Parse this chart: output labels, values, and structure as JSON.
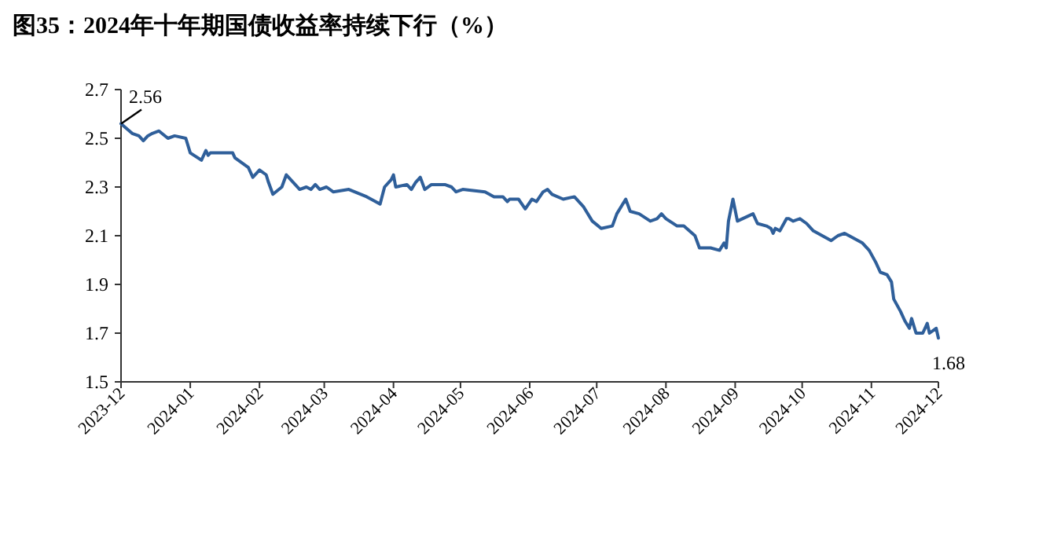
{
  "chart_data": {
    "type": "line",
    "title": "图35：2024年十年期国债收益率持续下行（%）",
    "xlim": [
      "2023-12-01",
      "2024-12-01"
    ],
    "xticks": [
      "2023-12",
      "2024-01",
      "2024-02",
      "2024-03",
      "2024-04",
      "2024-05",
      "2024-06",
      "2024-07",
      "2024-08",
      "2024-09",
      "2024-10",
      "2024-11",
      "2024-12"
    ],
    "ylim": [
      1.5,
      2.7
    ],
    "yticks": [
      1.5,
      1.7,
      1.9,
      2.1,
      2.3,
      2.5,
      2.7
    ],
    "annotations": [
      {
        "text": "2.56",
        "x": "2023-12-01",
        "y": 2.56
      },
      {
        "text": "1.68",
        "x": "2024-12-01",
        "y": 1.68
      }
    ],
    "series": [
      {
        "color": "#2f5f9a",
        "x": [
          "2023-12-01",
          "2023-12-06",
          "2023-12-09",
          "2023-12-11",
          "2023-12-13",
          "2023-12-15",
          "2023-12-18",
          "2023-12-22",
          "2023-12-25",
          "2023-12-30",
          "2024-01-01",
          "2024-01-06",
          "2024-01-08",
          "2024-01-09",
          "2024-01-10",
          "2024-01-20",
          "2024-01-21",
          "2024-01-27",
          "2024-01-29",
          "2024-02-01",
          "2024-02-04",
          "2024-02-05",
          "2024-02-07",
          "2024-02-11",
          "2024-02-13",
          "2024-02-14",
          "2024-02-19",
          "2024-02-22",
          "2024-02-24",
          "2024-02-26",
          "2024-02-28",
          "2024-03-02",
          "2024-03-05",
          "2024-03-12",
          "2024-03-20",
          "2024-03-26",
          "2024-03-28",
          "2024-03-31",
          "2024-04-01",
          "2024-04-02",
          "2024-04-07",
          "2024-04-09",
          "2024-04-11",
          "2024-04-13",
          "2024-04-15",
          "2024-04-18",
          "2024-04-24",
          "2024-04-27",
          "2024-04-29",
          "2024-05-02",
          "2024-05-12",
          "2024-05-16",
          "2024-05-20",
          "2024-05-22",
          "2024-05-23",
          "2024-05-27",
          "2024-05-30",
          "2024-06-02",
          "2024-06-04",
          "2024-06-07",
          "2024-06-09",
          "2024-06-11",
          "2024-06-16",
          "2024-06-21",
          "2024-06-25",
          "2024-06-29",
          "2024-07-03",
          "2024-07-08",
          "2024-07-10",
          "2024-07-14",
          "2024-07-16",
          "2024-07-20",
          "2024-07-25",
          "2024-07-28",
          "2024-07-30",
          "2024-08-01",
          "2024-08-06",
          "2024-08-09",
          "2024-08-14",
          "2024-08-16",
          "2024-08-21",
          "2024-08-25",
          "2024-08-27",
          "2024-08-28",
          "2024-08-29",
          "2024-08-31",
          "2024-09-02",
          "2024-09-09",
          "2024-09-11",
          "2024-09-15",
          "2024-09-17",
          "2024-09-18",
          "2024-09-19",
          "2024-09-21",
          "2024-09-24",
          "2024-09-25",
          "2024-09-27",
          "2024-09-30",
          "2024-10-03",
          "2024-10-06",
          "2024-10-10",
          "2024-10-14",
          "2024-10-17",
          "2024-10-20",
          "2024-10-22",
          "2024-10-28",
          "2024-10-31",
          "2024-11-03",
          "2024-11-05",
          "2024-11-08",
          "2024-11-10",
          "2024-11-11",
          "2024-11-14",
          "2024-11-16",
          "2024-11-18",
          "2024-11-19",
          "2024-11-21",
          "2024-11-24",
          "2024-11-26",
          "2024-11-27",
          "2024-11-30",
          "2024-12-01"
        ],
        "values": [
          2.56,
          2.52,
          2.51,
          2.49,
          2.51,
          2.52,
          2.53,
          2.5,
          2.51,
          2.5,
          2.44,
          2.41,
          2.45,
          2.43,
          2.44,
          2.44,
          2.42,
          2.38,
          2.34,
          2.37,
          2.35,
          2.32,
          2.27,
          2.3,
          2.35,
          2.34,
          2.29,
          2.3,
          2.29,
          2.31,
          2.29,
          2.3,
          2.28,
          2.29,
          2.26,
          2.23,
          2.3,
          2.33,
          2.35,
          2.3,
          2.31,
          2.29,
          2.32,
          2.34,
          2.29,
          2.31,
          2.31,
          2.3,
          2.28,
          2.29,
          2.28,
          2.26,
          2.26,
          2.24,
          2.25,
          2.25,
          2.21,
          2.25,
          2.24,
          2.28,
          2.29,
          2.27,
          2.25,
          2.26,
          2.22,
          2.16,
          2.13,
          2.14,
          2.19,
          2.25,
          2.2,
          2.19,
          2.16,
          2.17,
          2.19,
          2.17,
          2.14,
          2.14,
          2.1,
          2.05,
          2.05,
          2.04,
          2.07,
          2.05,
          2.16,
          2.25,
          2.16,
          2.19,
          2.15,
          2.14,
          2.13,
          2.11,
          2.13,
          2.12,
          2.17,
          2.17,
          2.16,
          2.17,
          2.15,
          2.12,
          2.1,
          2.08,
          2.1,
          2.11,
          2.1,
          2.07,
          2.04,
          1.99,
          1.95,
          1.94,
          1.91,
          1.84,
          1.79,
          1.75,
          1.72,
          1.76,
          1.7,
          1.7,
          1.74,
          1.7,
          1.72,
          1.68
        ]
      }
    ]
  }
}
